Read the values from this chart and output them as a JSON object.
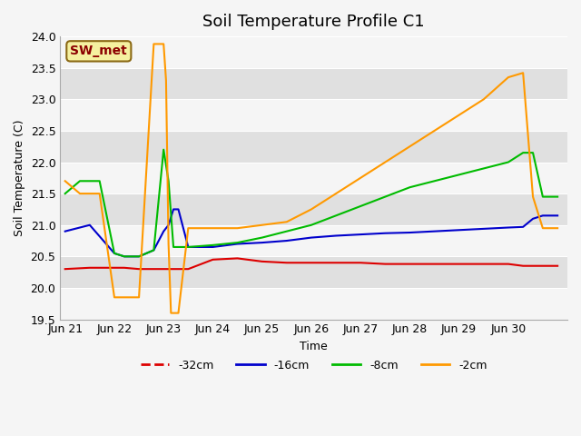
{
  "title": "Soil Temperature Profile C1",
  "xlabel": "Time",
  "ylabel": "Soil Temperature (C)",
  "ylim": [
    19.5,
    24.0
  ],
  "yticks": [
    19.5,
    20.0,
    20.5,
    21.0,
    21.5,
    22.0,
    22.5,
    23.0,
    23.5,
    24.0
  ],
  "annotation_label": "SW_met",
  "plot_bg_color": "#ebebeb",
  "lines": {
    "-32cm": {
      "color": "#dd0000",
      "x": [
        0,
        0.5,
        1.0,
        1.2,
        1.5,
        1.8,
        2.0,
        2.5,
        3.0,
        3.5,
        4.0,
        4.5,
        5.0,
        5.5,
        6.0,
        6.5,
        7.0,
        7.5,
        8.0,
        8.5,
        9.0,
        9.3,
        9.5,
        9.7,
        9.85,
        10.0
      ],
      "y": [
        20.3,
        20.32,
        20.32,
        20.32,
        20.3,
        20.3,
        20.3,
        20.3,
        20.45,
        20.47,
        20.42,
        20.4,
        20.4,
        20.4,
        20.4,
        20.38,
        20.38,
        20.38,
        20.38,
        20.38,
        20.38,
        20.35,
        20.35,
        20.35,
        20.35,
        20.35
      ]
    },
    "-16cm": {
      "color": "#0000cc",
      "x": [
        0,
        0.5,
        1.0,
        1.2,
        1.5,
        1.8,
        2.0,
        2.1,
        2.2,
        2.3,
        2.5,
        3.0,
        3.5,
        4.0,
        4.5,
        5.0,
        5.5,
        6.0,
        6.5,
        7.0,
        7.5,
        8.0,
        8.5,
        9.0,
        9.3,
        9.5,
        9.7,
        9.85,
        10.0
      ],
      "y": [
        20.9,
        21.0,
        20.55,
        20.5,
        20.5,
        20.6,
        20.9,
        21.0,
        21.25,
        21.25,
        20.65,
        20.65,
        20.7,
        20.72,
        20.75,
        20.8,
        20.83,
        20.85,
        20.87,
        20.88,
        20.9,
        20.92,
        20.94,
        20.96,
        20.97,
        21.1,
        21.15,
        21.15,
        21.15
      ]
    },
    "-8cm": {
      "color": "#00bb00",
      "x": [
        0,
        0.3,
        0.7,
        1.0,
        1.2,
        1.5,
        1.8,
        2.0,
        2.1,
        2.2,
        2.3,
        2.5,
        3.0,
        3.5,
        4.0,
        4.5,
        5.0,
        5.5,
        6.0,
        6.5,
        7.0,
        7.5,
        8.0,
        8.5,
        9.0,
        9.3,
        9.5,
        9.7,
        9.85,
        10.0
      ],
      "y": [
        21.5,
        21.7,
        21.7,
        20.55,
        20.5,
        20.5,
        20.6,
        22.2,
        21.7,
        20.65,
        20.65,
        20.65,
        20.68,
        20.72,
        20.8,
        20.9,
        21.0,
        21.15,
        21.3,
        21.45,
        21.6,
        21.7,
        21.8,
        21.9,
        22.0,
        22.15,
        22.15,
        21.45,
        21.45,
        21.45
      ]
    },
    "-2cm": {
      "color": "#ff9900",
      "x": [
        0,
        0.3,
        0.7,
        1.0,
        1.2,
        1.5,
        1.8,
        2.0,
        2.05,
        2.1,
        2.15,
        2.2,
        2.3,
        2.5,
        3.0,
        3.5,
        4.0,
        4.5,
        5.0,
        5.5,
        6.0,
        6.5,
        7.0,
        7.5,
        8.0,
        8.5,
        9.0,
        9.3,
        9.5,
        9.7,
        9.85,
        10.0
      ],
      "y": [
        21.7,
        21.5,
        21.5,
        19.85,
        19.85,
        19.85,
        23.88,
        23.88,
        23.3,
        20.7,
        19.6,
        19.6,
        19.6,
        20.95,
        20.95,
        20.95,
        21.0,
        21.05,
        21.25,
        21.5,
        21.75,
        22.0,
        22.25,
        22.5,
        22.75,
        23.0,
        23.35,
        23.42,
        21.45,
        20.95,
        20.95,
        20.95
      ]
    }
  },
  "legend": [
    {
      "label": "-32cm",
      "color": "#dd0000",
      "linestyle": "--"
    },
    {
      "label": "-16cm",
      "color": "#0000cc",
      "linestyle": "-"
    },
    {
      "label": "-8cm",
      "color": "#00bb00",
      "linestyle": "-"
    },
    {
      "label": "-2cm",
      "color": "#ff9900",
      "linestyle": "-"
    }
  ],
  "xtick_positions": [
    0,
    1,
    2,
    3,
    4,
    5,
    6,
    7,
    8,
    9,
    10
  ],
  "xticklabels": [
    "Jun 21",
    "Jun 22",
    "Jun 23",
    "Jun 24",
    "Jun 25",
    "Jun 26",
    "Jun 27",
    "Jun 28",
    "Jun 29",
    "Jun 30",
    ""
  ],
  "xlim": [
    -0.1,
    10.2
  ],
  "band_color": "#d8d8d8",
  "line_width": 1.5
}
